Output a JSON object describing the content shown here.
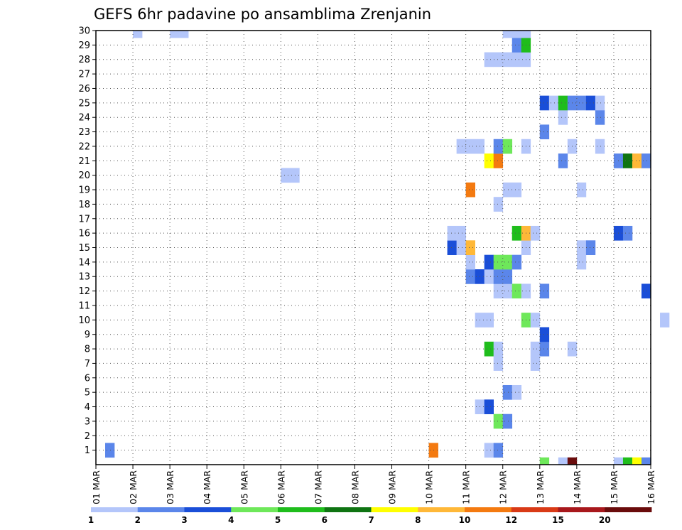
{
  "chart_data": {
    "type": "heatmap",
    "title": "GEFS 6hr padavine po ansamblima Zrenjanin",
    "xlabel": "",
    "ylabel": "",
    "x_ticks": [
      "01 MAR",
      "02 MAR",
      "03 MAR",
      "04 MAR",
      "05 MAR",
      "06 MAR",
      "07 MAR",
      "08 MAR",
      "09 MAR",
      "10 MAR",
      "11 MAR",
      "12 MAR",
      "13 MAR",
      "14 MAR",
      "15 MAR",
      "16 MAR"
    ],
    "y_ticks": [
      "1",
      "2",
      "3",
      "4",
      "5",
      "6",
      "7",
      "8",
      "9",
      "10",
      "11",
      "12",
      "13",
      "14",
      "15",
      "16",
      "17",
      "18",
      "19",
      "20",
      "21",
      "22",
      "23",
      "24",
      "25",
      "26",
      "27",
      "28",
      "29",
      "30"
    ],
    "x_unit": "6-hour step from 01 MAR 00z (4 steps per day)",
    "ylim": [
      0,
      30
    ],
    "grid": true,
    "colorbar": {
      "labels": [
        "1",
        "2",
        "3",
        "4",
        "5",
        "6",
        "7",
        "8",
        "10",
        "12",
        "15",
        "20"
      ],
      "colors": [
        "#b4c6fa",
        "#5b86ea",
        "#1a4ed8",
        "#6ee85a",
        "#1fbd1c",
        "#0f7412",
        "#ffff00",
        "#ffb838",
        "#f47a10",
        "#d93a16",
        "#a8181c",
        "#6a0c0c"
      ]
    },
    "cells": [
      {
        "x": 0.25,
        "y": 1,
        "level": 2
      },
      {
        "x": 5,
        "y": 20,
        "level": 1
      },
      {
        "x": 5.25,
        "y": 20,
        "level": 1
      },
      {
        "x": 12,
        "y": 0,
        "level": 4
      },
      {
        "x": 12.5,
        "y": 0,
        "level": 1
      },
      {
        "x": 12.75,
        "y": 0,
        "level": 12
      },
      {
        "x": 14,
        "y": 0,
        "level": 1
      },
      {
        "x": 14.25,
        "y": 0,
        "level": 5
      },
      {
        "x": 14.5,
        "y": 0,
        "level": 7
      },
      {
        "x": 14.75,
        "y": 0,
        "level": 2
      },
      {
        "x": 1.0,
        "y": 30,
        "level": 1
      },
      {
        "x": 2.0,
        "y": 30,
        "level": 1
      },
      {
        "x": 2.25,
        "y": 30,
        "level": 1
      },
      {
        "x": 9.0,
        "y": 1,
        "level": 9
      },
      {
        "x": 10.5,
        "y": 1,
        "level": 1
      },
      {
        "x": 10.75,
        "y": 1,
        "level": 2
      },
      {
        "x": 10.75,
        "y": 3,
        "level": 4
      },
      {
        "x": 11.0,
        "y": 3,
        "level": 2
      },
      {
        "x": 10.25,
        "y": 4,
        "level": 1
      },
      {
        "x": 10.5,
        "y": 4,
        "level": 3
      },
      {
        "x": 11.0,
        "y": 5,
        "level": 2
      },
      {
        "x": 11.25,
        "y": 5,
        "level": 1
      },
      {
        "x": 10.75,
        "y": 7,
        "level": 1
      },
      {
        "x": 11.75,
        "y": 7,
        "level": 1
      },
      {
        "x": 10.5,
        "y": 8,
        "level": 5
      },
      {
        "x": 10.75,
        "y": 8,
        "level": 1
      },
      {
        "x": 11.75,
        "y": 8,
        "level": 1
      },
      {
        "x": 12.0,
        "y": 8,
        "level": 2
      },
      {
        "x": 12.75,
        "y": 8,
        "level": 1
      },
      {
        "x": 12.0,
        "y": 9,
        "level": 3
      },
      {
        "x": 10.25,
        "y": 10,
        "level": 1
      },
      {
        "x": 10.5,
        "y": 10,
        "level": 1
      },
      {
        "x": 11.5,
        "y": 10,
        "level": 4
      },
      {
        "x": 11.75,
        "y": 10,
        "level": 1
      },
      {
        "x": 15.25,
        "y": 10,
        "level": 1
      },
      {
        "x": 10.75,
        "y": 12,
        "level": 1
      },
      {
        "x": 11.0,
        "y": 12,
        "level": 1
      },
      {
        "x": 11.25,
        "y": 12,
        "level": 4
      },
      {
        "x": 11.5,
        "y": 12,
        "level": 1
      },
      {
        "x": 12.0,
        "y": 12,
        "level": 2
      },
      {
        "x": 14.75,
        "y": 12,
        "level": 3
      },
      {
        "x": 10.0,
        "y": 13,
        "level": 2
      },
      {
        "x": 10.25,
        "y": 13,
        "level": 3
      },
      {
        "x": 10.5,
        "y": 13,
        "level": 1
      },
      {
        "x": 10.75,
        "y": 13,
        "level": 2
      },
      {
        "x": 11.0,
        "y": 13,
        "level": 2
      },
      {
        "x": 10.0,
        "y": 14,
        "level": 1
      },
      {
        "x": 10.5,
        "y": 14,
        "level": 3
      },
      {
        "x": 10.75,
        "y": 14,
        "level": 4
      },
      {
        "x": 11.0,
        "y": 14,
        "level": 4
      },
      {
        "x": 11.25,
        "y": 14,
        "level": 2
      },
      {
        "x": 13.0,
        "y": 14,
        "level": 1
      },
      {
        "x": 9.5,
        "y": 15,
        "level": 3
      },
      {
        "x": 9.75,
        "y": 15,
        "level": 1
      },
      {
        "x": 10.0,
        "y": 15,
        "level": 8
      },
      {
        "x": 11.5,
        "y": 15,
        "level": 1
      },
      {
        "x": 13.0,
        "y": 15,
        "level": 1
      },
      {
        "x": 13.25,
        "y": 15,
        "level": 2
      },
      {
        "x": 9.5,
        "y": 16,
        "level": 1
      },
      {
        "x": 9.75,
        "y": 16,
        "level": 1
      },
      {
        "x": 11.25,
        "y": 16,
        "level": 5
      },
      {
        "x": 11.5,
        "y": 16,
        "level": 8
      },
      {
        "x": 11.75,
        "y": 16,
        "level": 1
      },
      {
        "x": 14.0,
        "y": 16,
        "level": 3
      },
      {
        "x": 14.25,
        "y": 16,
        "level": 2
      },
      {
        "x": 10.75,
        "y": 18,
        "level": 1
      },
      {
        "x": 10.0,
        "y": 19,
        "level": 9
      },
      {
        "x": 11.0,
        "y": 19,
        "level": 1
      },
      {
        "x": 11.25,
        "y": 19,
        "level": 1
      },
      {
        "x": 13.0,
        "y": 19,
        "level": 1
      },
      {
        "x": 10.5,
        "y": 21,
        "level": 7
      },
      {
        "x": 10.75,
        "y": 21,
        "level": 9
      },
      {
        "x": 12.5,
        "y": 21,
        "level": 2
      },
      {
        "x": 14.0,
        "y": 21,
        "level": 2
      },
      {
        "x": 14.25,
        "y": 21,
        "level": 6
      },
      {
        "x": 14.5,
        "y": 21,
        "level": 8
      },
      {
        "x": 14.75,
        "y": 21,
        "level": 2
      },
      {
        "x": 9.75,
        "y": 22,
        "level": 1
      },
      {
        "x": 10.0,
        "y": 22,
        "level": 1
      },
      {
        "x": 10.25,
        "y": 22,
        "level": 1
      },
      {
        "x": 10.75,
        "y": 22,
        "level": 2
      },
      {
        "x": 11.0,
        "y": 22,
        "level": 4
      },
      {
        "x": 11.5,
        "y": 22,
        "level": 1
      },
      {
        "x": 12.75,
        "y": 22,
        "level": 1
      },
      {
        "x": 13.5,
        "y": 22,
        "level": 1
      },
      {
        "x": 12.0,
        "y": 23,
        "level": 2
      },
      {
        "x": 12.5,
        "y": 24,
        "level": 1
      },
      {
        "x": 13.5,
        "y": 24,
        "level": 2
      },
      {
        "x": 12.0,
        "y": 25,
        "level": 3
      },
      {
        "x": 12.25,
        "y": 25,
        "level": 1
      },
      {
        "x": 12.5,
        "y": 25,
        "level": 5
      },
      {
        "x": 12.75,
        "y": 25,
        "level": 2
      },
      {
        "x": 13.0,
        "y": 25,
        "level": 2
      },
      {
        "x": 13.25,
        "y": 25,
        "level": 3
      },
      {
        "x": 13.5,
        "y": 25,
        "level": 1
      },
      {
        "x": 10.5,
        "y": 28,
        "level": 1
      },
      {
        "x": 10.75,
        "y": 28,
        "level": 1
      },
      {
        "x": 11.0,
        "y": 28,
        "level": 1
      },
      {
        "x": 11.25,
        "y": 28,
        "level": 1
      },
      {
        "x": 11.5,
        "y": 28,
        "level": 1
      },
      {
        "x": 11.25,
        "y": 29,
        "level": 2
      },
      {
        "x": 11.5,
        "y": 29,
        "level": 5
      },
      {
        "x": 11.0,
        "y": 30,
        "level": 1
      },
      {
        "x": 11.25,
        "y": 30,
        "level": 1
      },
      {
        "x": 11.5,
        "y": 30,
        "level": 1
      }
    ]
  }
}
